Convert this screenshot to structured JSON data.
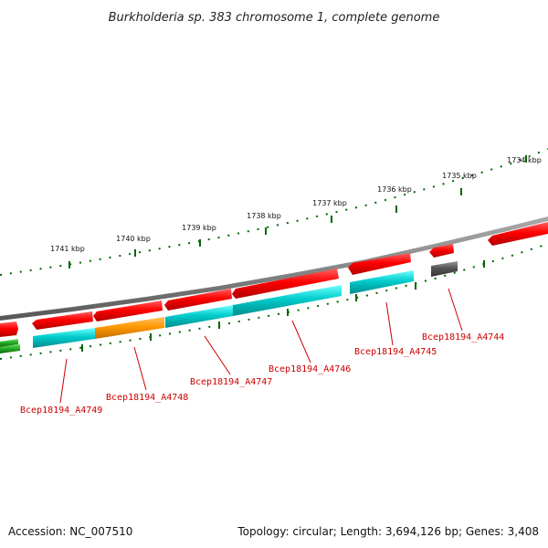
{
  "title": "Burkholderia sp. 383 chromosome 1, complete genome",
  "accession": "Accession: NC_007510",
  "summary": "Topology: circular; Length: 3,694,126 bp; Genes: 3,408",
  "ruler_labels": [
    "1734 kbp",
    "1735 kbp",
    "1736 kbp",
    "1737 kbp",
    "1738 kbp",
    "1739 kbp",
    "1740 kbp",
    "1741 kbp"
  ],
  "genes": [
    {
      "label": "Bcep18194_A4744"
    },
    {
      "label": "Bcep18194_A4745"
    },
    {
      "label": "Bcep18194_A4746"
    },
    {
      "label": "Bcep18194_A4747"
    },
    {
      "label": "Bcep18194_A4748"
    },
    {
      "label": "Bcep18194_A4749"
    }
  ],
  "colors": {
    "cds": "#ff0000",
    "gene_match": "#00cccc",
    "highlight": "#ff9900",
    "other": "#555555",
    "green": "#22aa22",
    "backbone": "#888888",
    "ruler": "#006600",
    "label": "#cc0000"
  }
}
